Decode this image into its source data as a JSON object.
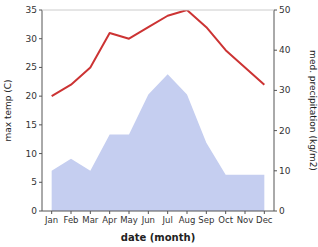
{
  "chart_data": {
    "type": "line",
    "xlabel": "date (month)",
    "ylabel": "max temp (C)",
    "y2label": "med. precipitation (kg/m2)",
    "categories": [
      "Jan",
      "Feb",
      "Mar",
      "Apr",
      "May",
      "Jun",
      "Jul",
      "Aug",
      "Sep",
      "Oct",
      "Nov",
      "Dec"
    ],
    "series": [
      {
        "type": "line",
        "color": "#cc3333",
        "values": [
          20,
          22,
          25,
          31,
          30,
          32,
          34,
          35,
          32,
          28,
          25,
          22
        ]
      },
      {
        "type": "area",
        "color": "#c5cef0",
        "axis": "y2",
        "values": [
          10,
          13,
          10,
          19,
          19,
          29,
          34,
          29,
          17,
          9,
          9,
          9
        ]
      }
    ],
    "ylim": [
      0,
      35
    ],
    "yticks": [
      0,
      5,
      10,
      15,
      20,
      25,
      30,
      35
    ],
    "y2lim": [
      0,
      50
    ],
    "y2ticks": [
      0,
      10,
      20,
      30,
      40,
      50
    ],
    "grid": false
  }
}
